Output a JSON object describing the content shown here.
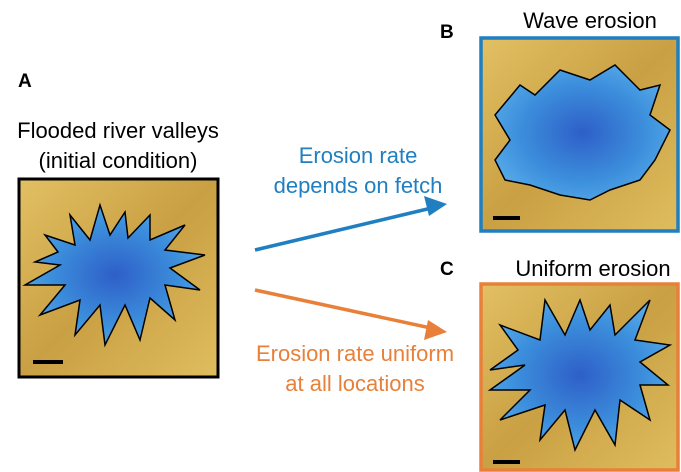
{
  "panels": [
    {
      "letter": "A",
      "title_lines": [
        "Flooded river valleys",
        "(initial condition)"
      ]
    },
    {
      "letter": "B",
      "title": "Wave erosion"
    },
    {
      "letter": "C",
      "title": "Uniform erosion"
    }
  ],
  "arrows": [
    {
      "label_lines": [
        "Erosion rate",
        "depends on fetch"
      ]
    },
    {
      "label_lines": [
        "Erosion rate uniform",
        "at all locations"
      ]
    }
  ]
}
